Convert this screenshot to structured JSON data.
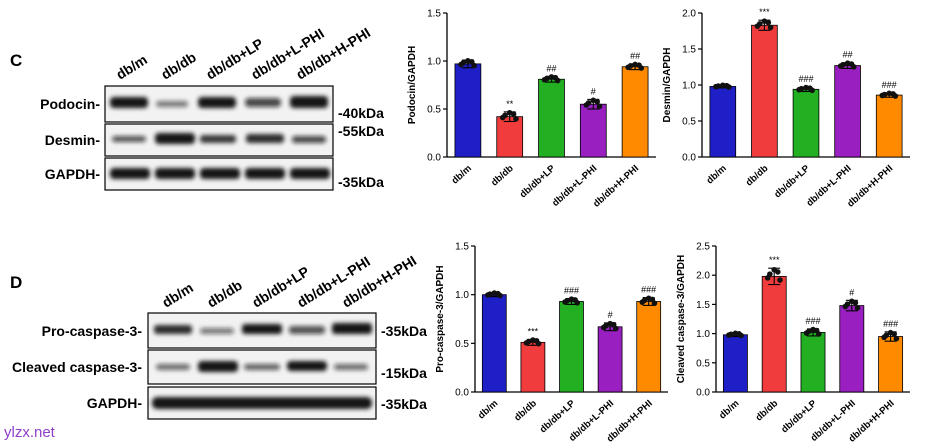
{
  "panel_c": {
    "letter": "C",
    "lanes": [
      "db/m",
      "db/db",
      "db/db+LP",
      "db/db+L-PHI",
      "db/db+H-PHI"
    ],
    "rows": [
      {
        "label": "Podocin-",
        "kda": "-40kDa"
      },
      {
        "label": "Desmin-",
        "kda": "-55kDa"
      },
      {
        "label": "GAPDH-",
        "kda": "-35kDa"
      }
    ]
  },
  "panel_d": {
    "letter": "D",
    "lanes": [
      "db/m",
      "db/db",
      "db/db+LP",
      "db/db+L-PHI",
      "db/db+H-PHI"
    ],
    "rows": [
      {
        "label": "Pro-caspase-3-",
        "kda": "-35kDa"
      },
      {
        "label": "Cleaved caspase-3-",
        "kda": "-15kDa"
      },
      {
        "label": "GAPDH-",
        "kda": "-35kDa"
      }
    ]
  },
  "watermark": "ylzx.net",
  "chart_data": [
    {
      "type": "bar",
      "id": "podocin",
      "ylabel": "Podocin/GAPDH",
      "ylim": [
        0,
        1.5
      ],
      "yticks": [
        "0.0",
        "0.5",
        "1.0",
        "1.5"
      ],
      "categories": [
        "db/m",
        "db/db",
        "db/db+LP",
        "db/db+L-PHI",
        "db/db+H-PHI"
      ],
      "values": [
        0.97,
        0.42,
        0.81,
        0.55,
        0.94
      ],
      "errors": [
        0.04,
        0.05,
        0.03,
        0.05,
        0.03
      ],
      "annotations": [
        "",
        "**",
        "##",
        "#",
        "##"
      ],
      "colors": [
        "#1f1fc8",
        "#f03c3c",
        "#22b022",
        "#9a1fc0",
        "#ff8a00"
      ]
    },
    {
      "type": "bar",
      "id": "desmin",
      "ylabel": "Desmin/GAPDH",
      "ylim": [
        0,
        2.0
      ],
      "yticks": [
        "0.0",
        "0.5",
        "1.0",
        "1.5",
        "2.0"
      ],
      "categories": [
        "db/m",
        "db/db",
        "db/db+LP",
        "db/db+L-PHI",
        "db/db+H-PHI"
      ],
      "values": [
        0.98,
        1.83,
        0.94,
        1.27,
        0.86
      ],
      "errors": [
        0.02,
        0.07,
        0.03,
        0.04,
        0.03
      ],
      "annotations": [
        "",
        "***",
        "###",
        "##",
        "###"
      ],
      "colors": [
        "#1f1fc8",
        "#f03c3c",
        "#22b022",
        "#9a1fc0",
        "#ff8a00"
      ]
    },
    {
      "type": "bar",
      "id": "pro-caspase-3",
      "ylabel": "Pro-caspase-3/GAPDH",
      "ylim": [
        0,
        1.5
      ],
      "yticks": [
        "0.0",
        "0.5",
        "1.0",
        "1.5"
      ],
      "categories": [
        "db/m",
        "db/db",
        "db/db+LP",
        "db/db+L-PHI",
        "db/db+H-PHI"
      ],
      "values": [
        1.0,
        0.51,
        0.93,
        0.67,
        0.93
      ],
      "errors": [
        0.02,
        0.03,
        0.03,
        0.04,
        0.04
      ],
      "annotations": [
        "",
        "***",
        "###",
        "#",
        "###"
      ],
      "colors": [
        "#1f1fc8",
        "#f03c3c",
        "#22b022",
        "#9a1fc0",
        "#ff8a00"
      ]
    },
    {
      "type": "bar",
      "id": "cleaved-caspase-3",
      "ylabel": "Cleaved caspase-3/GAPDH",
      "ylim": [
        0,
        2.5
      ],
      "yticks": [
        "0.0",
        "0.5",
        "1.0",
        "1.5",
        "2.0",
        "2.5"
      ],
      "categories": [
        "db/m",
        "db/db",
        "db/db+LP",
        "db/db+L-PHI",
        "db/db+H-PHI"
      ],
      "values": [
        0.98,
        1.98,
        1.02,
        1.48,
        0.95
      ],
      "errors": [
        0.03,
        0.14,
        0.06,
        0.09,
        0.08
      ],
      "annotations": [
        "",
        "***",
        "###",
        "#",
        "###"
      ],
      "colors": [
        "#1f1fc8",
        "#f03c3c",
        "#22b022",
        "#9a1fc0",
        "#ff8a00"
      ]
    }
  ]
}
